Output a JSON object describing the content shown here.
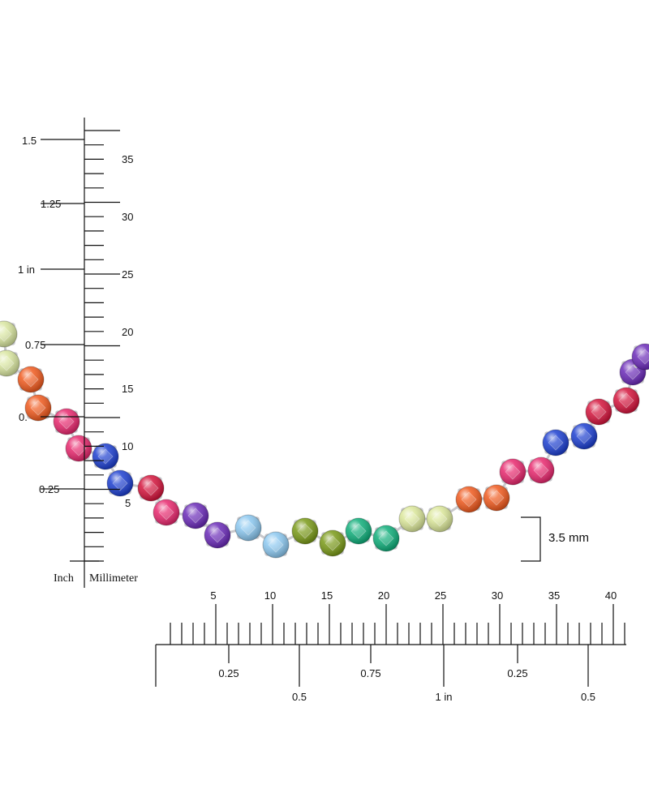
{
  "vertical_ruler": {
    "inch_labels": [
      "1.5",
      "1.25",
      "1 in",
      "0.75",
      "0.",
      "0.25"
    ],
    "mm_labels": [
      "35",
      "30",
      "25",
      "20",
      "15",
      "10",
      "5"
    ],
    "unit_inch": "Inch",
    "unit_mm": "Millimeter"
  },
  "horizontal_ruler": {
    "mm_labels": [
      "5",
      "10",
      "15",
      "20",
      "25",
      "30",
      "35",
      "40"
    ],
    "inch_labels_upper": [
      "0.25",
      "0.75",
      "0.25"
    ],
    "inch_labels_lower": [
      "0.5",
      "1 in",
      "0.5"
    ]
  },
  "dimension": {
    "label": "3.5 mm"
  },
  "necklace": {
    "metal_color": "#c8c8cc",
    "stone_colors": {
      "peridot_light": "#d9e6a0",
      "orange": "#f05a1e",
      "pink": "#e8286e",
      "blue": "#1d3fd0",
      "ruby": "#d4143c",
      "purple": "#6a2ab8",
      "aqua": "#8cc8f0",
      "olive": "#7a9a18",
      "emerald": "#0fae7a",
      "lime": "#dbe79a"
    }
  }
}
